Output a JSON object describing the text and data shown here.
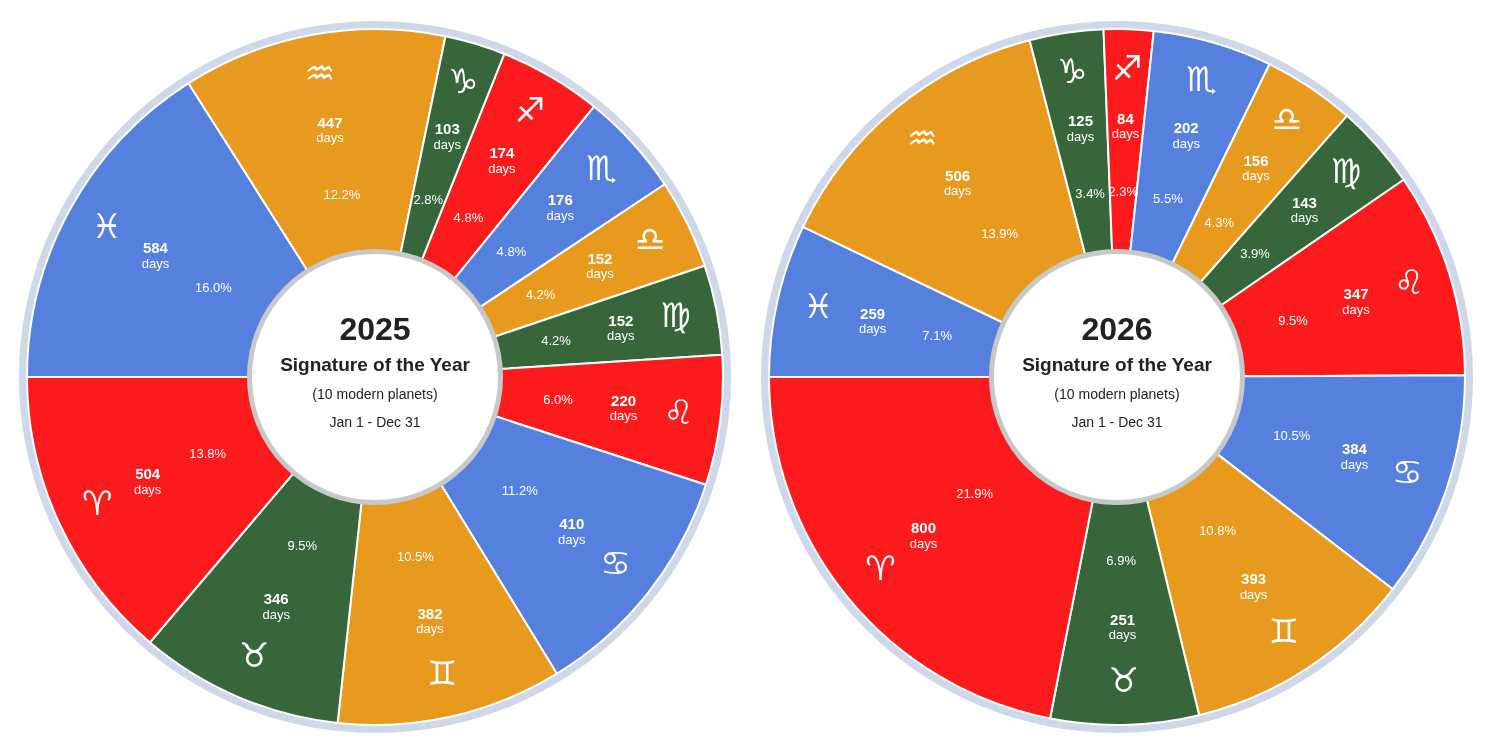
{
  "chart_data": [
    {
      "type": "donut",
      "title": "2025",
      "subtitle": "Signature of the Year",
      "categories": [
        "♓",
        "♒",
        "♑",
        "♐",
        "♏",
        "♎",
        "♍",
        "♌",
        "♋",
        "♊",
        "♉",
        "♈"
      ],
      "values": [
        584,
        447,
        103,
        174,
        176,
        152,
        152,
        220,
        410,
        382,
        346,
        504
      ],
      "colors": [
        "#5580dd",
        "#e89a1f",
        "#36663a",
        "#fc1b1c",
        "#5580dd",
        "#e89a1f",
        "#36663a",
        "#fc1b1c",
        "#5580dd",
        "#e89a1f",
        "#36663a",
        "#fc1b1c"
      ],
      "data_labels": true,
      "value_labels": [
        "584 days",
        "447 days",
        "103 days",
        "174 days",
        "176 days",
        "152 days",
        "152 days",
        "220 days",
        "410 days",
        "382 days",
        "346 days",
        "504 days"
      ],
      "annotations": [
        "(10 modern planets)",
        "Jan 1 - Dec 31",
        {
          "text": "16.0%",
          "x": "♓"
        },
        {
          "text": "12.2%",
          "x": "♒"
        },
        {
          "text": "2.8%",
          "x": "♑"
        },
        {
          "text": "4.8%",
          "x": "♐"
        },
        {
          "text": "4.8%",
          "x": "♏"
        },
        {
          "text": "4.2%",
          "x": "♎"
        },
        {
          "text": "4.2%",
          "x": "♍"
        },
        {
          "text": "6.0%",
          "x": "♌"
        },
        {
          "text": "11.2%",
          "x": "♋"
        },
        {
          "text": "10.5%",
          "x": "♊"
        },
        {
          "text": "9.5%",
          "x": "♉"
        },
        {
          "text": "13.8%",
          "x": "♈"
        }
      ],
      "legend": false
    },
    {
      "type": "donut",
      "title": "2026",
      "subtitle": "Signature of the Year",
      "categories": [
        "♓",
        "♒",
        "♑",
        "♐",
        "♏",
        "♎",
        "♍",
        "♌",
        "♋",
        "♊",
        "♉",
        "♈"
      ],
      "values": [
        259,
        506,
        125,
        84,
        202,
        156,
        143,
        347,
        384,
        393,
        251,
        800
      ],
      "colors": [
        "#5580dd",
        "#e89a1f",
        "#36663a",
        "#fc1b1c",
        "#5580dd",
        "#e89a1f",
        "#36663a",
        "#fc1b1c",
        "#5580dd",
        "#e89a1f",
        "#36663a",
        "#fc1b1c"
      ],
      "data_labels": true,
      "value_labels": [
        "259 days",
        "506 days",
        "125 days",
        "84 days",
        "202 days",
        "156 days",
        "143 days",
        "347 days",
        "384 days",
        "393 days",
        "251 days",
        "800 days"
      ],
      "annotations": [
        "(10 modern planets)",
        "Jan 1 - Dec 31",
        {
          "text": "7.1%",
          "x": "♓"
        },
        {
          "text": "13.9%",
          "x": "♒"
        },
        {
          "text": "3.4%",
          "x": "♑"
        },
        {
          "text": "2.3%",
          "x": "♐"
        },
        {
          "text": "5.5%",
          "x": "♏"
        },
        {
          "text": "4.3%",
          "x": "♎"
        },
        {
          "text": "3.9%",
          "x": "♍"
        },
        {
          "text": "9.5%",
          "x": "♌"
        },
        {
          "text": "10.5%",
          "x": "♋"
        },
        {
          "text": "10.8%",
          "x": "♊"
        },
        {
          "text": "6.9%",
          "x": "♉"
        },
        {
          "text": "21.9%",
          "x": "♈"
        }
      ],
      "legend": false
    }
  ]
}
